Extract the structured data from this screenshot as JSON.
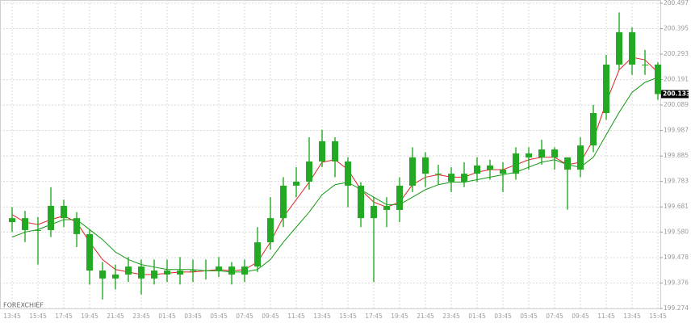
{
  "chart_data": {
    "type": "candlestick",
    "watermark": "FOREXCHIEF",
    "categories": [
      "13:45",
      null,
      "15:45",
      null,
      "17:45",
      null,
      "19:45",
      null,
      "21:45",
      null,
      "23:45",
      null,
      "01:45",
      null,
      "03:45",
      null,
      "05:45",
      null,
      "07:45",
      null,
      "09:45",
      null,
      "11:45",
      null,
      "13:45",
      null,
      "15:45",
      null,
      "17:45",
      null,
      "19:45",
      null,
      "21:45",
      null,
      "23:45",
      null,
      "01:45",
      null,
      "03:45",
      null,
      "05:45",
      null,
      "07:45",
      null,
      "09:45",
      null,
      "11:45",
      null,
      "13:45",
      null,
      "15:45"
    ],
    "candles": {
      "color": "#22aa22",
      "open": [
        199.62,
        199.636,
        199.588,
        199.588,
        199.685,
        199.636,
        199.572,
        199.426,
        199.394,
        199.41,
        199.442,
        199.394,
        199.426,
        199.41,
        199.426,
        199.426,
        199.426,
        199.442,
        199.41,
        199.442,
        199.539,
        199.636,
        199.766,
        199.782,
        199.863,
        199.944,
        199.863,
        199.766,
        199.636,
        199.685,
        199.669,
        199.766,
        199.879,
        199.814,
        199.814,
        199.782,
        199.814,
        199.847,
        199.83,
        199.814,
        199.895,
        199.879,
        199.911,
        199.879,
        199.83,
        199.927,
        200.057,
        200.251,
        200.381,
        200.251,
        200.251
      ],
      "high": [
        199.68,
        199.665,
        199.64,
        199.76,
        199.71,
        199.66,
        199.59,
        199.46,
        199.45,
        199.48,
        199.47,
        199.47,
        199.47,
        199.48,
        199.47,
        199.47,
        199.48,
        199.46,
        199.47,
        199.6,
        199.72,
        199.8,
        199.84,
        199.96,
        199.99,
        199.96,
        199.88,
        199.78,
        199.72,
        199.72,
        199.8,
        199.92,
        199.9,
        199.85,
        199.84,
        199.86,
        199.88,
        199.87,
        199.86,
        199.92,
        199.92,
        199.95,
        199.92,
        199.88,
        199.96,
        200.09,
        200.29,
        200.46,
        200.4,
        200.31,
        200.26
      ],
      "low": [
        199.58,
        199.54,
        199.45,
        199.56,
        199.6,
        199.52,
        199.37,
        199.31,
        199.35,
        199.38,
        199.33,
        199.37,
        199.38,
        199.37,
        199.38,
        199.39,
        199.4,
        199.37,
        199.38,
        199.42,
        199.51,
        199.6,
        199.72,
        199.75,
        199.84,
        199.8,
        199.68,
        199.6,
        199.38,
        199.6,
        199.62,
        199.74,
        199.76,
        199.77,
        199.74,
        199.76,
        199.78,
        199.79,
        199.74,
        199.79,
        199.83,
        199.85,
        199.83,
        199.67,
        199.8,
        199.9,
        200.03,
        200.23,
        200.21,
        200.21,
        200.11
      ],
      "close": [
        199.636,
        199.588,
        199.588,
        199.685,
        199.636,
        199.572,
        199.426,
        199.394,
        199.41,
        199.442,
        199.394,
        199.426,
        199.41,
        199.426,
        199.426,
        199.426,
        199.442,
        199.41,
        199.442,
        199.539,
        199.636,
        199.766,
        199.782,
        199.863,
        199.944,
        199.863,
        199.766,
        199.636,
        199.685,
        199.669,
        199.766,
        199.879,
        199.814,
        199.814,
        199.782,
        199.814,
        199.847,
        199.83,
        199.814,
        199.895,
        199.879,
        199.911,
        199.879,
        199.83,
        199.927,
        200.057,
        200.251,
        200.381,
        200.251,
        200.251,
        200.133
      ]
    },
    "lines": [
      {
        "color": "#dd2222",
        "values": [
          199.65,
          199.62,
          199.61,
          199.63,
          199.645,
          199.62,
          199.54,
          199.47,
          199.43,
          199.42,
          199.41,
          199.41,
          199.415,
          199.42,
          199.42,
          199.425,
          199.43,
          199.425,
          199.43,
          199.46,
          199.54,
          199.64,
          199.71,
          199.78,
          199.86,
          199.87,
          199.83,
          199.75,
          199.7,
          199.68,
          199.7,
          199.77,
          199.8,
          199.81,
          199.8,
          199.8,
          199.82,
          199.83,
          199.83,
          199.85,
          199.87,
          199.88,
          199.88,
          199.85,
          199.86,
          199.95,
          200.1,
          200.23,
          200.28,
          200.27,
          200.22
        ]
      },
      {
        "color": "#119911",
        "values": [
          199.56,
          199.58,
          199.59,
          199.61,
          199.63,
          199.63,
          199.59,
          199.55,
          199.5,
          199.47,
          199.45,
          199.44,
          199.43,
          199.43,
          199.43,
          199.425,
          199.425,
          199.42,
          199.42,
          199.43,
          199.47,
          199.54,
          199.6,
          199.66,
          199.73,
          199.77,
          199.78,
          199.75,
          199.72,
          199.69,
          199.69,
          199.72,
          199.75,
          199.77,
          199.78,
          199.78,
          199.79,
          199.8,
          199.81,
          199.82,
          199.84,
          199.86,
          199.87,
          199.85,
          199.84,
          199.88,
          199.97,
          200.06,
          200.14,
          200.18,
          200.2
        ]
      }
    ],
    "current_price": 200.133,
    "ylim": [
      199.274,
      200.497
    ],
    "yticks": [
      199.274,
      199.376,
      199.478,
      {
        "value": 199.58,
        "label": "199.580"
      },
      199.681,
      199.783,
      199.885,
      199.987,
      200.089,
      200.191,
      200.293,
      200.395,
      200.497
    ],
    "grid": true
  }
}
